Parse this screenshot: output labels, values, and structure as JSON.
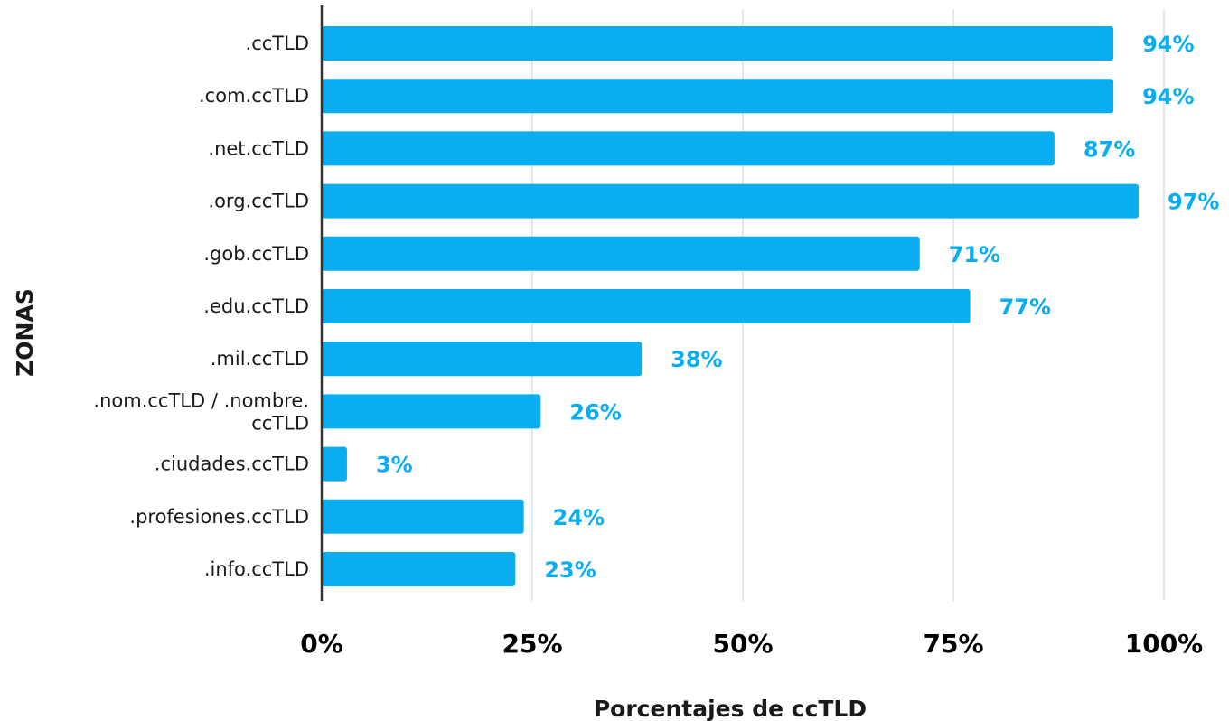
{
  "chart_data": {
    "type": "bar",
    "orientation": "horizontal",
    "categories": [
      ".ccTLD",
      ".com.ccTLD",
      ".net.ccTLD",
      ".org.ccTLD",
      ".gob.ccTLD",
      ".edu.ccTLD",
      ".mil.ccTLD",
      ".nom.ccTLD / .nombre. ccTLD",
      ".ciudades.ccTLD",
      ".profesiones.ccTLD",
      ".info.ccTLD"
    ],
    "values": [
      94,
      94,
      87,
      97,
      71,
      77,
      38,
      26,
      3,
      24,
      23
    ],
    "value_labels": [
      "94%",
      "94%",
      "87%",
      "97%",
      "71%",
      "77%",
      "38%",
      "26%",
      "3%",
      "24%",
      "23%"
    ],
    "xlabel": "Porcentajes de ccTLD",
    "ylabel": "ZONAS",
    "xlim": [
      0,
      100
    ],
    "x_ticks": [
      0,
      25,
      50,
      75,
      100
    ],
    "x_tick_labels": [
      "0%",
      "25%",
      "50%",
      "75%",
      "100%"
    ],
    "grid": "vertical",
    "legend": "none",
    "colors": {
      "bar": "#0aaef0",
      "value_label": "#0aaef0",
      "grid": "#e6e6e6",
      "axis": "#333333"
    }
  }
}
